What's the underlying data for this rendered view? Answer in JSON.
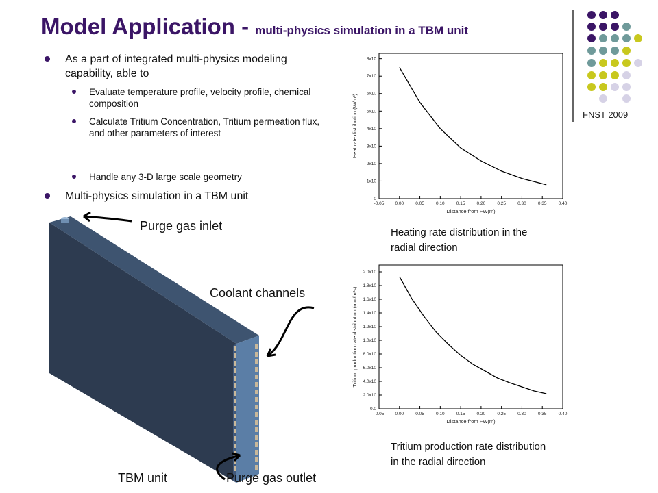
{
  "header": {
    "title": "Model Application - ",
    "subtitle": "multi-physics simulation in a TBM unit"
  },
  "logo": {
    "text": "FNST 2009"
  },
  "bullets": [
    {
      "text": "As a part of integrated  multi-physics modeling capability, able to",
      "sub": [
        "Evaluate temperature profile, velocity profile, chemical composition",
        "Calculate Tritium Concentration, Tritium permeation flux, and other parameters of interest",
        "Handle any 3-D large scale geometry"
      ]
    },
    {
      "text": "Multi-physics simulation in a TBM unit"
    }
  ],
  "labels": {
    "purge_inlet": "Purge gas inlet",
    "coolant": "Coolant channels",
    "tbm": "TBM unit",
    "purge_outlet": "Purge gas outlet",
    "caption1": "Heating rate distribution in the radial direction",
    "caption2": "Tritium production rate distribution in the radial direction"
  },
  "chart_data": [
    {
      "type": "line",
      "x_label": "Distance from FW(m)",
      "y_label": "Heat rate distribution (W/m³)",
      "color": "#000000",
      "x": [
        0,
        0.05,
        0.1,
        0.15,
        0.2,
        0.25,
        0.3,
        0.36
      ],
      "values": [
        7.5,
        5.5,
        4.0,
        2.9,
        2.15,
        1.57,
        1.15,
        0.79
      ],
      "xlim": [
        -0.05,
        0.4
      ],
      "xticks": [
        -0.05,
        {
          "value": 0,
          "label": "0.00"
        },
        0.05,
        {
          "value": 0.1,
          "label": "0.10"
        },
        0.15,
        {
          "value": 0.2,
          "label": "0.20"
        },
        0.25,
        {
          "value": 0.3,
          "label": "0.30"
        },
        0.35,
        {
          "value": 0.4,
          "label": "0.40"
        }
      ],
      "ylim": [
        0,
        8.3
      ],
      "yticks": [
        0,
        {
          "value": 1,
          "label": "1x10"
        },
        {
          "value": 2,
          "label": "2x10"
        },
        {
          "value": 3,
          "label": "3x10"
        },
        {
          "value": 4,
          "label": "4x10"
        },
        {
          "value": 5,
          "label": "5x10"
        },
        {
          "value": 6,
          "label": "6x10"
        },
        {
          "value": 7,
          "label": "7x10"
        },
        {
          "value": 8,
          "label": "8x10"
        }
      ]
    },
    {
      "type": "line",
      "x_label": "Distance from FW(m)",
      "y_label": "Tritium production rate distribution (mol/m³s)",
      "color": "#000000",
      "x": [
        0,
        0.03,
        0.06,
        0.09,
        0.12,
        0.15,
        0.18,
        0.21,
        0.24,
        0.27,
        0.3,
        0.33,
        0.36
      ],
      "values": [
        1.93,
        1.61,
        1.35,
        1.12,
        0.94,
        0.78,
        0.65,
        0.55,
        0.45,
        0.38,
        0.32,
        0.26,
        0.22
      ],
      "xlim": [
        -0.05,
        0.4
      ],
      "xticks": [
        -0.05,
        {
          "value": 0,
          "label": "0.00"
        },
        0.05,
        {
          "value": 0.1,
          "label": "0.10"
        },
        0.15,
        {
          "value": 0.2,
          "label": "0.20"
        },
        0.25,
        {
          "value": 0.3,
          "label": "0.30"
        },
        0.35,
        {
          "value": 0.4,
          "label": "0.40"
        }
      ],
      "ylim": [
        0,
        2.1
      ],
      "yticks": [
        {
          "value": 0,
          "label": "0.0"
        },
        {
          "value": 0.2,
          "label": "2.0x10"
        },
        {
          "value": 0.4,
          "label": "4.0x10"
        },
        {
          "value": 0.6,
          "label": "6.0x10"
        },
        {
          "value": 0.8,
          "label": "8.0x10"
        },
        {
          "value": 1.0,
          "label": "1.0x10"
        },
        {
          "value": 1.2,
          "label": "1.2x10"
        },
        {
          "value": 1.4,
          "label": "1.4x10"
        },
        {
          "value": 1.6,
          "label": "1.6x10"
        },
        {
          "value": 1.8,
          "label": "1.8x10"
        },
        {
          "value": 2.0,
          "label": "2.0x10"
        }
      ]
    }
  ]
}
